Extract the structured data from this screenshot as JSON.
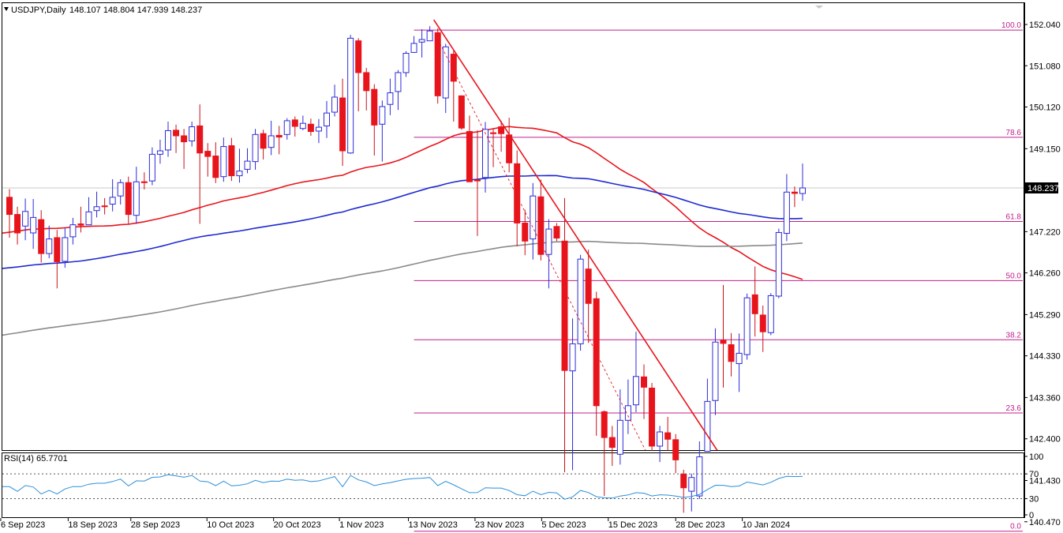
{
  "header": {
    "symbol": "USDJPY,Daily",
    "ohlc": "148.107 148.804 147.939 148.237"
  },
  "rsi_header": "RSI(14) 65.7701",
  "price_axis": {
    "labels": [
      "152.040",
      "151.080",
      "150.120",
      "149.150",
      "148.237",
      "147.220",
      "146.260",
      "145.290",
      "144.330",
      "143.360",
      "142.400",
      "141.430",
      "140.470"
    ],
    "current_price": "148.237",
    "current_label_bg": "#000000"
  },
  "rsi_axis": {
    "labels": [
      "100",
      "70",
      "30",
      "0"
    ]
  },
  "date_axis": {
    "labels": [
      "6 Sep 2023",
      "18 Sep 2023",
      "28 Sep 2023",
      "10 Oct 2023",
      "20 Oct 2023",
      "1 Nov 2023",
      "13 Nov 2023",
      "23 Nov 2023",
      "5 Dec 2023",
      "15 Dec 2023",
      "28 Dec 2023",
      "10 Jan 2024"
    ]
  },
  "colors": {
    "bull_body": "#ffffff",
    "bull_border": "#2c2cd8",
    "bear_body": "#e8141c",
    "wick_bull": "#2c2cd8",
    "wick_bear": "#c81018",
    "ma_fast": "#e8141c",
    "ma_mid": "#1f2ad0",
    "ma_slow": "#8a8a8a",
    "fib": "#c0208a",
    "trend": "#e8141c",
    "rsi": "#2b8fd8"
  },
  "chart_data": {
    "type": "candlestick",
    "title": "USDJPY,Daily",
    "ylim": [
      140.2,
      152.5
    ],
    "candles": [
      [
        148.02,
        147.62,
        148.21,
        147.08
      ],
      [
        147.62,
        147.19,
        147.8,
        146.92
      ],
      [
        147.35,
        147.69,
        147.99,
        147.02
      ],
      [
        147.19,
        147.55,
        147.98,
        146.82
      ],
      [
        147.5,
        146.71,
        147.72,
        146.5
      ],
      [
        146.71,
        147.05,
        147.36,
        146.6
      ],
      [
        147.08,
        146.52,
        147.26,
        145.9
      ],
      [
        146.53,
        147.08,
        147.31,
        146.38
      ],
      [
        147.1,
        147.38,
        147.54,
        146.92
      ],
      [
        147.4,
        147.37,
        147.8,
        147.2
      ],
      [
        147.38,
        147.68,
        148.02,
        147.4
      ],
      [
        147.71,
        147.8,
        148.15,
        147.55
      ],
      [
        147.82,
        147.8,
        148.0,
        147.62
      ],
      [
        147.86,
        148.02,
        148.44,
        147.69
      ],
      [
        148.05,
        148.36,
        148.44,
        147.85
      ],
      [
        148.36,
        147.62,
        148.5,
        147.39
      ],
      [
        147.6,
        148.38,
        148.73,
        147.4
      ],
      [
        148.38,
        148.36,
        148.6,
        148.2
      ],
      [
        148.4,
        149.02,
        149.18,
        148.3
      ],
      [
        149.02,
        149.1,
        149.36,
        148.8
      ],
      [
        149.12,
        149.57,
        149.78,
        148.96
      ],
      [
        149.58,
        149.45,
        149.71,
        149.05
      ],
      [
        149.45,
        149.31,
        149.61,
        148.68
      ],
      [
        149.33,
        149.66,
        149.78,
        149.2
      ],
      [
        149.68,
        149.05,
        150.18,
        147.4
      ],
      [
        149.09,
        148.97,
        149.28,
        148.5
      ],
      [
        148.98,
        148.48,
        149.3,
        148.35
      ],
      [
        148.5,
        149.2,
        149.41,
        148.38
      ],
      [
        149.22,
        148.52,
        149.4,
        148.4
      ],
      [
        148.52,
        148.63,
        149.15,
        148.36
      ],
      [
        148.67,
        148.86,
        149.16,
        148.58
      ],
      [
        148.85,
        149.48,
        149.61,
        148.66
      ],
      [
        149.5,
        149.16,
        149.59,
        148.9
      ],
      [
        149.18,
        149.45,
        149.8,
        149.0
      ],
      [
        149.46,
        149.42,
        149.68,
        149.02
      ],
      [
        149.48,
        149.8,
        149.86,
        149.36
      ],
      [
        149.82,
        149.67,
        149.9,
        149.43
      ],
      [
        149.62,
        149.74,
        149.92,
        149.58
      ],
      [
        149.72,
        149.55,
        149.85,
        149.45
      ],
      [
        149.56,
        149.65,
        149.84,
        149.28
      ],
      [
        149.68,
        149.98,
        150.26,
        149.4
      ],
      [
        150.0,
        150.35,
        150.64,
        149.9
      ],
      [
        150.33,
        149.1,
        150.78,
        148.75
      ],
      [
        149.05,
        151.72,
        151.8,
        149.03
      ],
      [
        151.66,
        150.92,
        151.72,
        150.02
      ],
      [
        150.92,
        150.5,
        151.03,
        150.04
      ],
      [
        150.53,
        149.7,
        150.65,
        148.99
      ],
      [
        149.72,
        150.13,
        150.27,
        148.85
      ],
      [
        150.18,
        150.45,
        150.78,
        149.93
      ],
      [
        150.48,
        150.92,
        150.98,
        150.05
      ],
      [
        150.92,
        151.37,
        151.42,
        150.82
      ],
      [
        151.39,
        151.6,
        151.77,
        151.38
      ],
      [
        151.63,
        151.69,
        151.93,
        151.27
      ],
      [
        151.66,
        151.89,
        152.0,
        151.74
      ],
      [
        151.85,
        150.38,
        151.95,
        150.2
      ],
      [
        150.33,
        151.52,
        151.59,
        149.98
      ],
      [
        151.35,
        150.72,
        151.43,
        149.78
      ],
      [
        150.38,
        149.63,
        150.38,
        149.59
      ],
      [
        149.55,
        148.38,
        149.92,
        148.4
      ],
      [
        148.42,
        148.4,
        149.58,
        147.12
      ],
      [
        148.48,
        149.6,
        149.77,
        148.13
      ],
      [
        149.52,
        149.5,
        149.62,
        148.72
      ],
      [
        149.66,
        149.5,
        149.8,
        149.08
      ],
      [
        149.47,
        148.82,
        149.87,
        148.6
      ],
      [
        148.8,
        147.42,
        149.11,
        146.88
      ],
      [
        147.42,
        147.0,
        147.73,
        146.67
      ],
      [
        147.05,
        148.05,
        148.35,
        146.57
      ],
      [
        148.03,
        146.69,
        148.43,
        146.55
      ],
      [
        146.69,
        147.28,
        147.51,
        145.9
      ],
      [
        147.34,
        147.07,
        147.42,
        147.0
      ],
      [
        147.0,
        143.99,
        148.0,
        141.62
      ],
      [
        143.98,
        144.61,
        145.2,
        141.67
      ],
      [
        144.61,
        146.58,
        146.68,
        144.45
      ],
      [
        146.35,
        145.55,
        146.8,
        144.63
      ],
      [
        145.66,
        143.17,
        145.82,
        142.47
      ],
      [
        143.03,
        142.43,
        143.06,
        141.07
      ],
      [
        142.43,
        142.2,
        142.7,
        141.77
      ],
      [
        142.04,
        142.83,
        143.55,
        141.8
      ],
      [
        142.83,
        143.17,
        143.78,
        142.51
      ],
      [
        143.19,
        143.85,
        144.89,
        143.02
      ],
      [
        143.84,
        143.6,
        144.13,
        142.86
      ],
      [
        143.58,
        142.23,
        143.7,
        142.12
      ],
      [
        142.23,
        142.56,
        142.7,
        141.86
      ],
      [
        142.54,
        142.39,
        142.91,
        142.13
      ],
      [
        142.38,
        141.91,
        142.51,
        141.6
      ],
      [
        141.58,
        141.26,
        141.68,
        140.68
      ],
      [
        141.18,
        141.5,
        141.59,
        140.71
      ],
      [
        141.07,
        141.98,
        142.34,
        141.0
      ],
      [
        142.11,
        143.27,
        143.8,
        142.1
      ],
      [
        143.29,
        144.65,
        144.97,
        142.95
      ],
      [
        144.69,
        144.62,
        145.98,
        143.59
      ],
      [
        144.59,
        144.2,
        144.86,
        143.85
      ],
      [
        144.15,
        144.39,
        144.85,
        143.49
      ],
      [
        144.36,
        145.68,
        145.78,
        144.24
      ],
      [
        145.75,
        145.31,
        146.41,
        144.78
      ],
      [
        145.28,
        144.89,
        145.5,
        144.42
      ],
      [
        144.87,
        145.73,
        145.79,
        144.81
      ],
      [
        145.72,
        147.2,
        147.29,
        145.67
      ],
      [
        147.18,
        148.14,
        148.56,
        147.0
      ],
      [
        148.14,
        148.11,
        148.27,
        147.79
      ],
      [
        148.107,
        148.237,
        148.804,
        147.939
      ]
    ],
    "moving_averages": [
      {
        "period": 50,
        "color": "red"
      },
      {
        "period": 100,
        "color": "blue"
      },
      {
        "period": 200,
        "color": "gray"
      }
    ],
    "fibonacci": {
      "high": 151.91,
      "low": 140.25,
      "levels": [
        {
          "ratio": 1.0,
          "label": "100.0"
        },
        {
          "ratio": 0.786,
          "label": "78.6"
        },
        {
          "ratio": 0.618,
          "label": "61.8"
        },
        {
          "ratio": 0.5,
          "label": "50.0"
        },
        {
          "ratio": 0.382,
          "label": "38.2"
        },
        {
          "ratio": 0.236,
          "label": "23.6"
        },
        {
          "ratio": 0.0,
          "label": "0.0"
        }
      ]
    },
    "trendlines": [
      {
        "from": [
          53.5,
          152.15
        ],
        "to": [
          93.2,
          141.02
        ],
        "style": "solid"
      },
      {
        "from": [
          76.0,
          139.95
        ],
        "to": [
          109.8,
          141.72
        ],
        "style": "solid"
      },
      {
        "from": [
          54.0,
          151.7
        ],
        "to": [
          85.2,
          140.3
        ],
        "style": "dashed"
      }
    ],
    "rsi": {
      "period": 14,
      "value": 65.7701,
      "levels": [
        70,
        30
      ],
      "ylim": [
        0,
        100
      ]
    }
  }
}
